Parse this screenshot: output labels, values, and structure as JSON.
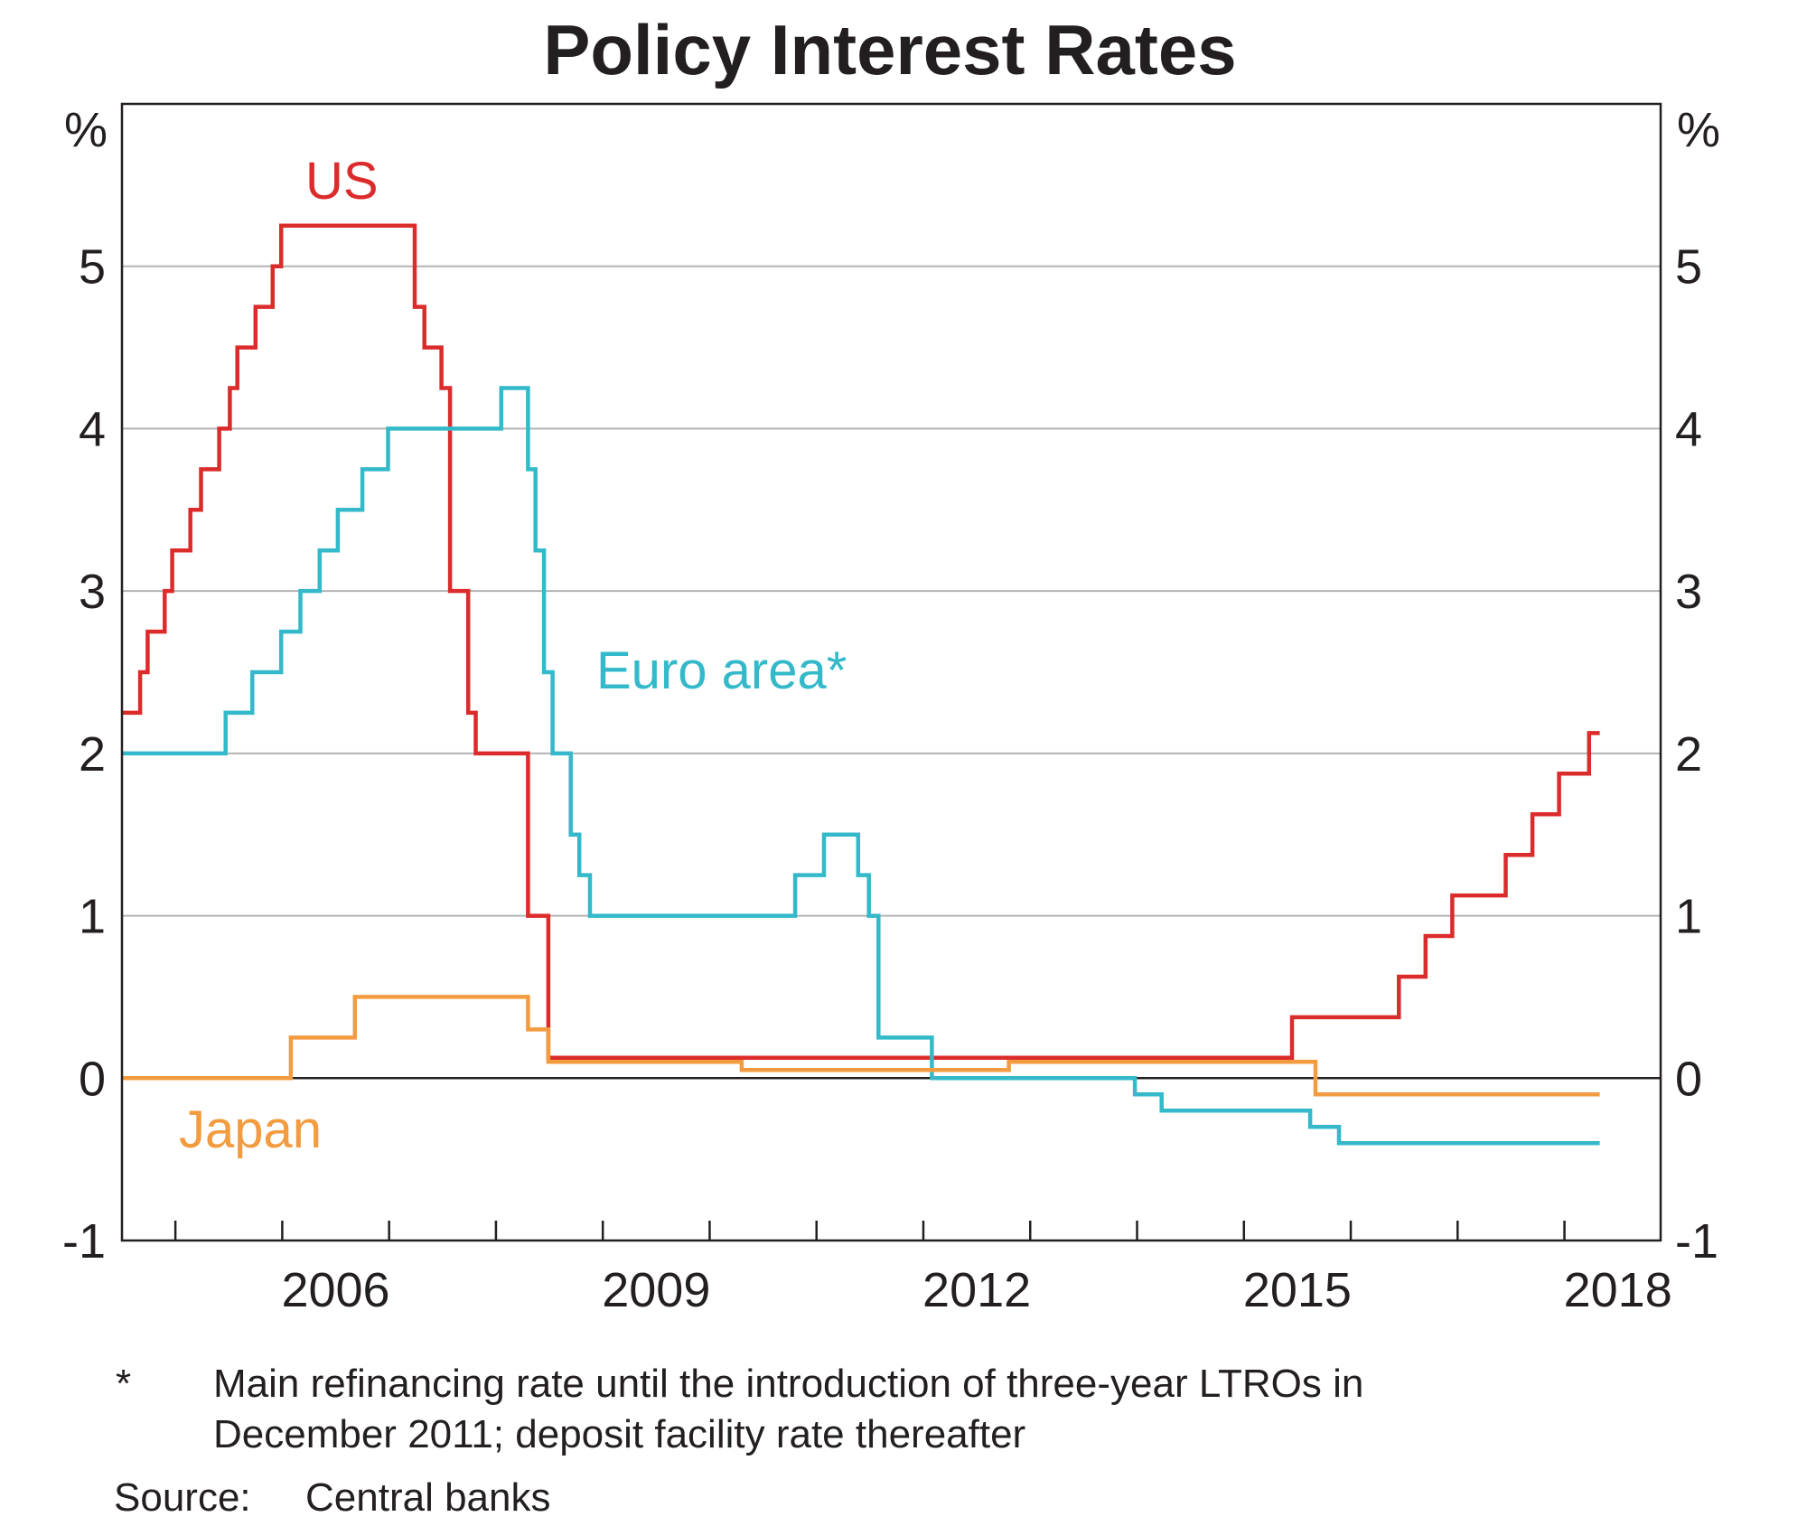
{
  "chart_data": {
    "type": "line",
    "step": true,
    "title": "Policy Interest Rates",
    "ylabel_left": "%",
    "ylabel_right": "%",
    "ylim": [
      -1,
      6
    ],
    "y_ticks": [
      5,
      4,
      3,
      2,
      1,
      0,
      -1
    ],
    "xlim": [
      2004.5,
      2018.9
    ],
    "x_tick_labels": [
      "2006",
      "2009",
      "2012",
      "2015",
      "2018"
    ],
    "x_tick_years": [
      2006,
      2009,
      2012,
      2015,
      2018
    ],
    "series": [
      {
        "name": "US",
        "label": "US",
        "color": "#dc2b2b",
        "points": [
          [
            2004.5,
            2.25
          ],
          [
            2004.67,
            2.5
          ],
          [
            2004.74,
            2.75
          ],
          [
            2004.9,
            3.0
          ],
          [
            2004.97,
            3.25
          ],
          [
            2005.14,
            3.5
          ],
          [
            2005.24,
            3.75
          ],
          [
            2005.41,
            4.0
          ],
          [
            2005.51,
            4.25
          ],
          [
            2005.58,
            4.5
          ],
          [
            2005.75,
            4.75
          ],
          [
            2005.91,
            5.0
          ],
          [
            2005.99,
            5.25
          ],
          [
            2007.24,
            4.75
          ],
          [
            2007.33,
            4.5
          ],
          [
            2007.49,
            4.25
          ],
          [
            2007.57,
            3.0
          ],
          [
            2007.74,
            2.25
          ],
          [
            2007.81,
            2.0
          ],
          [
            2008.3,
            1.0
          ],
          [
            2008.49,
            0.125
          ],
          [
            2015.45,
            0.375
          ],
          [
            2016.45,
            0.625
          ],
          [
            2016.7,
            0.875
          ],
          [
            2016.95,
            1.125
          ],
          [
            2017.45,
            1.375
          ],
          [
            2017.7,
            1.625
          ],
          [
            2017.95,
            1.875
          ],
          [
            2018.23,
            2.125
          ],
          [
            2018.33,
            2.125
          ]
        ]
      },
      {
        "name": "Euro area*",
        "label": "Euro area*",
        "color": "#33b9c9",
        "points": [
          [
            2004.5,
            2.0
          ],
          [
            2005.47,
            2.25
          ],
          [
            2005.72,
            2.5
          ],
          [
            2005.99,
            2.75
          ],
          [
            2006.17,
            3.0
          ],
          [
            2006.35,
            3.25
          ],
          [
            2006.52,
            3.5
          ],
          [
            2006.75,
            3.75
          ],
          [
            2006.99,
            4.0
          ],
          [
            2008.05,
            4.25
          ],
          [
            2008.3,
            3.75
          ],
          [
            2008.37,
            3.25
          ],
          [
            2008.45,
            2.5
          ],
          [
            2008.53,
            2.0
          ],
          [
            2008.7,
            1.5
          ],
          [
            2008.78,
            1.25
          ],
          [
            2008.88,
            1.0
          ],
          [
            2010.8,
            1.25
          ],
          [
            2011.07,
            1.5
          ],
          [
            2011.39,
            1.25
          ],
          [
            2011.49,
            1.0
          ],
          [
            2011.58,
            0.25
          ],
          [
            2012.08,
            0.0
          ],
          [
            2013.98,
            -0.1
          ],
          [
            2014.23,
            -0.2
          ],
          [
            2015.62,
            -0.3
          ],
          [
            2015.89,
            -0.4
          ],
          [
            2018.33,
            -0.4
          ]
        ]
      },
      {
        "name": "Japan",
        "label": "Japan",
        "color": "#f39b3f",
        "points": [
          [
            2004.5,
            0.0
          ],
          [
            2006.08,
            0.25
          ],
          [
            2006.68,
            0.5
          ],
          [
            2008.3,
            0.3
          ],
          [
            2008.49,
            0.1
          ],
          [
            2010.3,
            0.05
          ],
          [
            2012.8,
            0.1
          ],
          [
            2015.67,
            -0.1
          ],
          [
            2018.33,
            -0.1
          ]
        ]
      }
    ],
    "footnotes": {
      "star_marker": "*",
      "star_line1": "Main refinancing rate until the introduction of three-year LTROs in",
      "star_line2": "December 2011; deposit facility rate thereafter",
      "source_label": "Source:",
      "source_text": "Central banks"
    }
  }
}
